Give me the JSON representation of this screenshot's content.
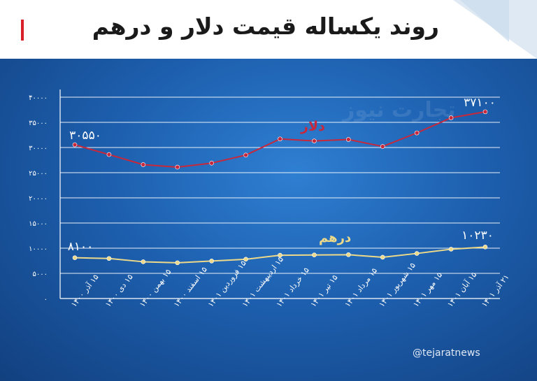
{
  "header": {
    "title": "روند یکساله قیمت دلار و درهم",
    "accent_color": "#d8202a"
  },
  "watermark": "تجارت نیوز",
  "footer": {
    "handle": "@tejaratnews"
  },
  "chart_data": {
    "type": "line",
    "categories": [
      "۱۵ آذر ۱۴۰۰",
      "۱۵ دی ۱۴۰۰",
      "۱۵ بهمن ۱۴۰۰",
      "۱۵ اسفند ۱۴۰۰",
      "۱۵ فروردین ۱۴۰۱",
      "۱۵ اردیبهشت ۱۴۰۱",
      "۱۵ خرداد ۱۴۰۱",
      "۱۵ تیر ۱۴۰۱",
      "۱۵ مرداد ۱۴۰۱",
      "۱۵ شهریور ۱۴۰۱",
      "۱۵ مهر ۱۴۰۱",
      "۱۵ آبان ۱۴۰۱",
      "۲۱ آذر ۱۴۰۱"
    ],
    "series": [
      {
        "name": "دلار",
        "color": "#c8283b",
        "values": [
          30550,
          28600,
          26600,
          26100,
          26900,
          28500,
          31700,
          31300,
          31600,
          30200,
          32900,
          35900,
          37100
        ]
      },
      {
        "name": "درهم",
        "color": "#ecd98a",
        "values": [
          8100,
          7950,
          7300,
          7100,
          7450,
          7800,
          8600,
          8650,
          8700,
          8200,
          8950,
          9800,
          10230
        ]
      }
    ],
    "labels": {
      "dollar_start": "۳۰۵۵۰",
      "dollar_end": "۳۷۱۰۰",
      "dirham_start": "۸۱۰۰",
      "dirham_end": "۱۰۲۳۰"
    },
    "y_ticks": [
      0,
      5000,
      10000,
      15000,
      20000,
      25000,
      30000,
      35000,
      40000
    ],
    "y_tick_labels": [
      "۰",
      "۵۰۰۰",
      "۱۰۰۰۰",
      "۱۵۰۰۰",
      "۲۰۰۰۰",
      "۲۵۰۰۰",
      "۳۰۰۰۰",
      "۳۵۰۰۰",
      "۴۰۰۰۰"
    ],
    "ylim": [
      0,
      40000
    ],
    "grid": true,
    "axis_color": "#ffffff",
    "grid_color": "#ffffff"
  }
}
